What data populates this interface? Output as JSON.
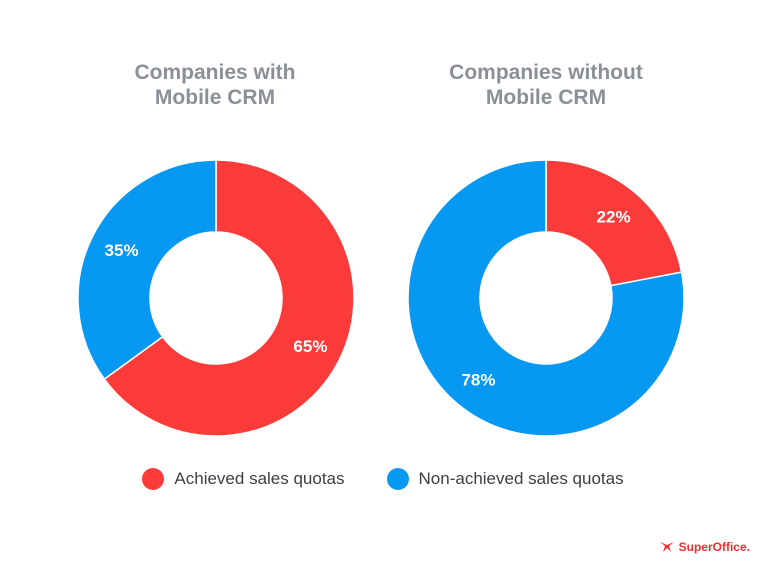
{
  "chart_data": [
    {
      "type": "pie",
      "title": "Companies with\nMobile CRM",
      "slices": [
        {
          "label": "Achieved sales quotas",
          "value": 65,
          "text": "65%",
          "color": "#fb3a3a"
        },
        {
          "label": "Non-achieved sales quotas",
          "value": 35,
          "text": "35%",
          "color": "#0798f2"
        }
      ]
    },
    {
      "type": "pie",
      "title": "Companies without\nMobile CRM",
      "slices": [
        {
          "label": "Achieved sales quotas",
          "value": 22,
          "text": "22%",
          "color": "#fb3a3a"
        },
        {
          "label": "Non-achieved sales quotas",
          "value": 78,
          "text": "78%",
          "color": "#0798f2"
        }
      ]
    }
  ],
  "legend": [
    {
      "label": "Achieved sales quotas",
      "color": "#fb3a3a"
    },
    {
      "label": "Non-achieved sales quotas",
      "color": "#0798f2"
    }
  ],
  "brand": {
    "text": "SuperOffice."
  }
}
